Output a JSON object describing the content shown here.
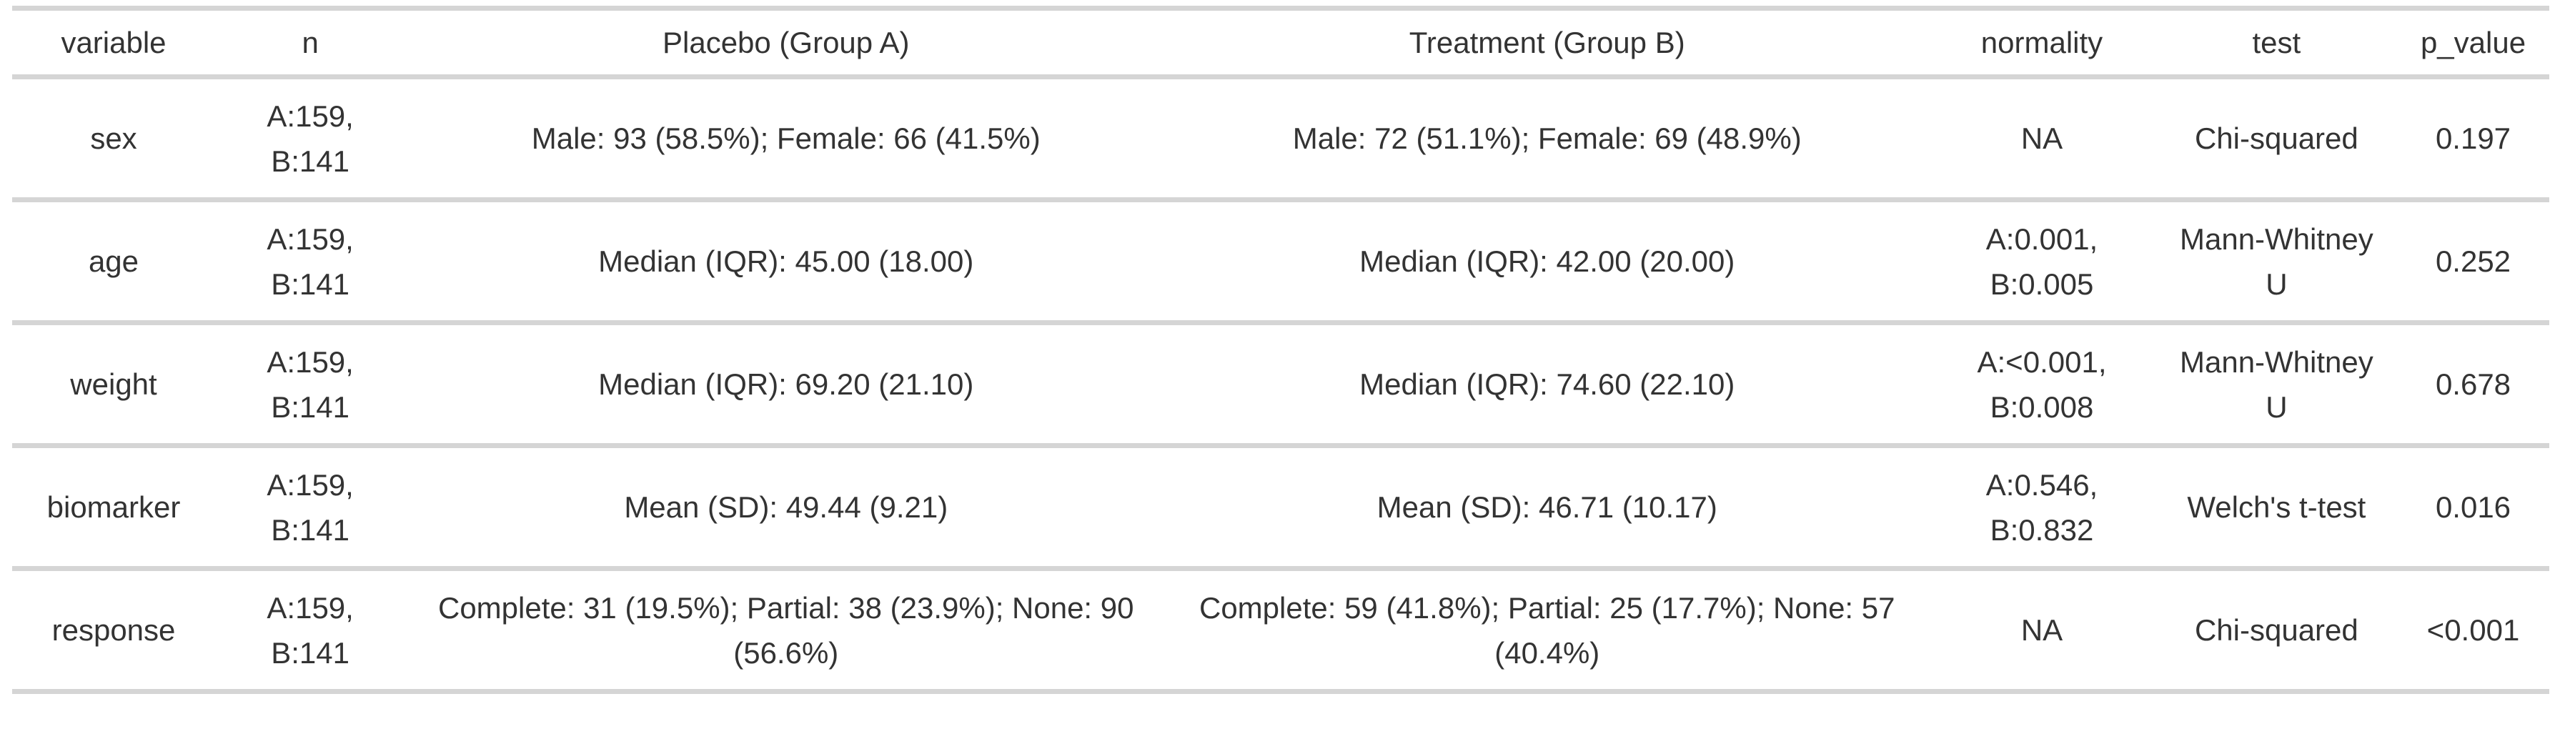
{
  "colors": {
    "background": "#ffffff",
    "text": "#333333",
    "row_border": "#d5d5d5"
  },
  "table": {
    "columns": [
      "variable",
      "n",
      "Placebo (Group A)",
      "Treatment (Group B)",
      "normality",
      "test",
      "p_value"
    ],
    "rows": [
      {
        "variable": "sex",
        "n": "A:159, B:141",
        "placebo": "Male: 93 (58.5%); Female: 66 (41.5%)",
        "treatment": "Male: 72 (51.1%); Female: 69 (48.9%)",
        "normality": "NA",
        "test": "Chi-squared",
        "p_value": "0.197"
      },
      {
        "variable": "age",
        "n": "A:159, B:141",
        "placebo": "Median (IQR): 45.00 (18.00)",
        "treatment": "Median (IQR): 42.00 (20.00)",
        "normality": "A:0.001, B:0.005",
        "test": "Mann-Whitney U",
        "p_value": "0.252"
      },
      {
        "variable": "weight",
        "n": "A:159, B:141",
        "placebo": "Median (IQR): 69.20 (21.10)",
        "treatment": "Median (IQR): 74.60 (22.10)",
        "normality": "A:<0.001, B:0.008",
        "test": "Mann-Whitney U",
        "p_value": "0.678"
      },
      {
        "variable": "biomarker",
        "n": "A:159, B:141",
        "placebo": "Mean (SD): 49.44 (9.21)",
        "treatment": "Mean (SD): 46.71 (10.17)",
        "normality": "A:0.546, B:0.832",
        "test": "Welch's t-test",
        "p_value": "0.016"
      },
      {
        "variable": "response",
        "n": "A:159, B:141",
        "placebo": "Complete: 31 (19.5%); Partial: 38 (23.9%); None: 90 (56.6%)",
        "treatment": "Complete: 59 (41.8%); Partial: 25 (17.7%); None: 57 (40.4%)",
        "normality": "NA",
        "test": "Chi-squared",
        "p_value": "<0.001"
      }
    ]
  },
  "chart_data": {
    "type": "table",
    "title": "",
    "columns": [
      "variable",
      "n",
      "Placebo (Group A)",
      "Treatment (Group B)",
      "normality",
      "test",
      "p_value"
    ],
    "rows": [
      [
        "sex",
        "A:159, B:141",
        "Male: 93 (58.5%); Female: 66 (41.5%)",
        "Male: 72 (51.1%); Female: 69 (48.9%)",
        "NA",
        "Chi-squared",
        "0.197"
      ],
      [
        "age",
        "A:159, B:141",
        "Median (IQR): 45.00 (18.00)",
        "Median (IQR): 42.00 (20.00)",
        "A:0.001, B:0.005",
        "Mann-Whitney U",
        "0.252"
      ],
      [
        "weight",
        "A:159, B:141",
        "Median (IQR): 69.20 (21.10)",
        "Median (IQR): 74.60 (22.10)",
        "A:<0.001, B:0.008",
        "Mann-Whitney U",
        "0.678"
      ],
      [
        "biomarker",
        "A:159, B:141",
        "Mean (SD): 49.44 (9.21)",
        "Mean (SD): 46.71 (10.17)",
        "A:0.546, B:0.832",
        "Welch's t-test",
        "0.016"
      ],
      [
        "response",
        "A:159, B:141",
        "Complete: 31 (19.5%); Partial: 38 (23.9%); None: 90 (56.6%)",
        "Complete: 59 (41.8%); Partial: 25 (17.7%); None: 57 (40.4%)",
        "NA",
        "Chi-squared",
        "<0.001"
      ]
    ]
  }
}
